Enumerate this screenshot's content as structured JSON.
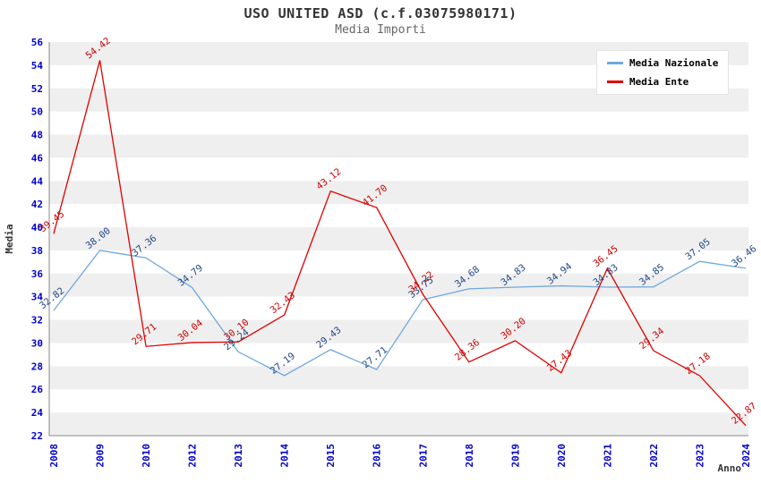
{
  "title": "USO UNITED ASD (c.f.03075980171)",
  "subtitle": "Media Importi",
  "legend": {
    "items": [
      "Media Nazionale",
      "Media Ente"
    ]
  },
  "chart_data": {
    "type": "line",
    "title": "USO UNITED ASD (c.f.03075980171)",
    "subtitle": "Media Importi",
    "xlabel": "Anno",
    "ylabel": "Media",
    "ylim": [
      22,
      56
    ],
    "ytick_step": 2,
    "grid": "horizontal-bands",
    "legend_position": "top-right",
    "band_color": "#efefef",
    "axis_tick_color": "#0000cc",
    "categories": [
      "2008",
      "2009",
      "2010",
      "2012",
      "2013",
      "2014",
      "2015",
      "2016",
      "2017",
      "2018",
      "2019",
      "2020",
      "2021",
      "2022",
      "2023",
      "2024"
    ],
    "series": [
      {
        "name": "Media Nazionale",
        "color": "#6fa8dc",
        "label_color": "#1f4788",
        "values": [
          32.82,
          38.0,
          37.36,
          34.79,
          29.24,
          27.19,
          29.43,
          27.71,
          33.75,
          34.68,
          34.83,
          34.94,
          34.83,
          34.85,
          37.05,
          36.46
        ]
      },
      {
        "name": "Media Ente",
        "color": "#e00000",
        "label_color": "#cc0000",
        "values": [
          39.45,
          54.42,
          29.71,
          30.04,
          30.1,
          32.43,
          43.12,
          41.7,
          34.22,
          28.36,
          30.2,
          27.43,
          36.45,
          29.34,
          27.18,
          22.87
        ]
      }
    ]
  }
}
